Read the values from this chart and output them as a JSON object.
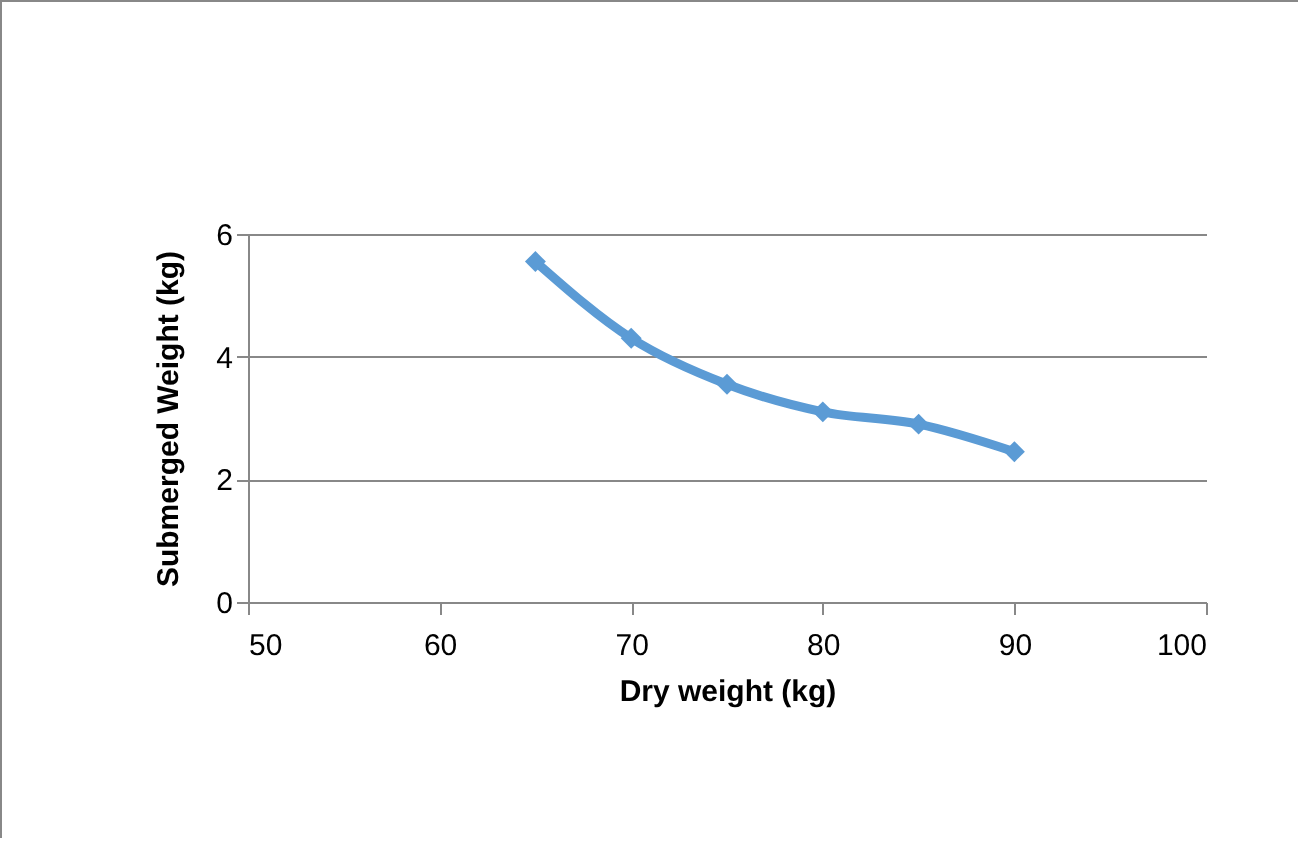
{
  "chart_data": {
    "type": "line",
    "xlabel": "Dry weight (kg)",
    "ylabel": "Submerged Weight (kg)",
    "x": [
      65,
      70,
      75,
      80,
      85,
      90
    ],
    "series": [
      {
        "color": "#5b9bd5",
        "values": [
          5.55,
          4.3,
          3.55,
          3.1,
          2.9,
          2.45
        ]
      }
    ],
    "xlim": [
      50,
      100
    ],
    "xticks": [
      50,
      60,
      70,
      80,
      90,
      100
    ],
    "ylim": [
      0,
      6
    ],
    "yticks": [
      0,
      2,
      4,
      6
    ],
    "grid": "y",
    "marker": "diamond",
    "line_style": "solid"
  }
}
